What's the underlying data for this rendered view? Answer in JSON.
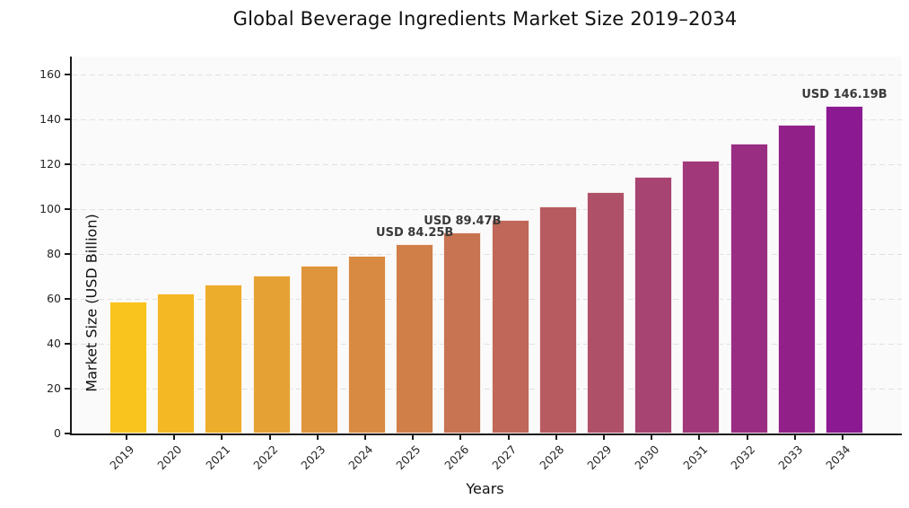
{
  "chart_data": {
    "type": "bar",
    "title": "Global Beverage Ingredients Market Size 2019–2034",
    "xlabel": "Years",
    "ylabel": "Market Size (USD Billion)",
    "categories": [
      "2019",
      "2020",
      "2021",
      "2022",
      "2023",
      "2024",
      "2025",
      "2026",
      "2027",
      "2028",
      "2029",
      "2030",
      "2031",
      "2032",
      "2033",
      "2034"
    ],
    "values": [
      58.72,
      62.36,
      66.23,
      70.34,
      74.7,
      79.33,
      84.25,
      89.47,
      95.13,
      101.15,
      107.55,
      114.36,
      121.6,
      129.3,
      137.48,
      146.19
    ],
    "bar_colors": [
      "#fac41f",
      "#f4b825",
      "#edad2c",
      "#e6a134",
      "#df953b",
      "#d88a42",
      "#d07f49",
      "#c87351",
      "#c06759",
      "#b75b61",
      "#af5069",
      "#a84471",
      "#a03879",
      "#992d81",
      "#912189",
      "#8a1992"
    ],
    "ylim": [
      0,
      168
    ],
    "yticks": [
      0,
      20,
      40,
      60,
      80,
      100,
      120,
      140,
      160
    ],
    "grid": "horizontal-dashed",
    "legend": "none",
    "annotations": [
      {
        "index": 6,
        "text": "USD 84.25B"
      },
      {
        "index": 7,
        "text": "USD 89.47B"
      },
      {
        "index": 15,
        "text": "USD 146.19B"
      }
    ]
  },
  "colors": {
    "figure_background": "#ffffff",
    "plot_background": "#fafafa",
    "gridline": "#e0e0e0",
    "spine": "#1a1a1a",
    "annotation_text": "#3a3a3a",
    "first_bar": "#fac41f",
    "last_bar": "#8a1992"
  }
}
